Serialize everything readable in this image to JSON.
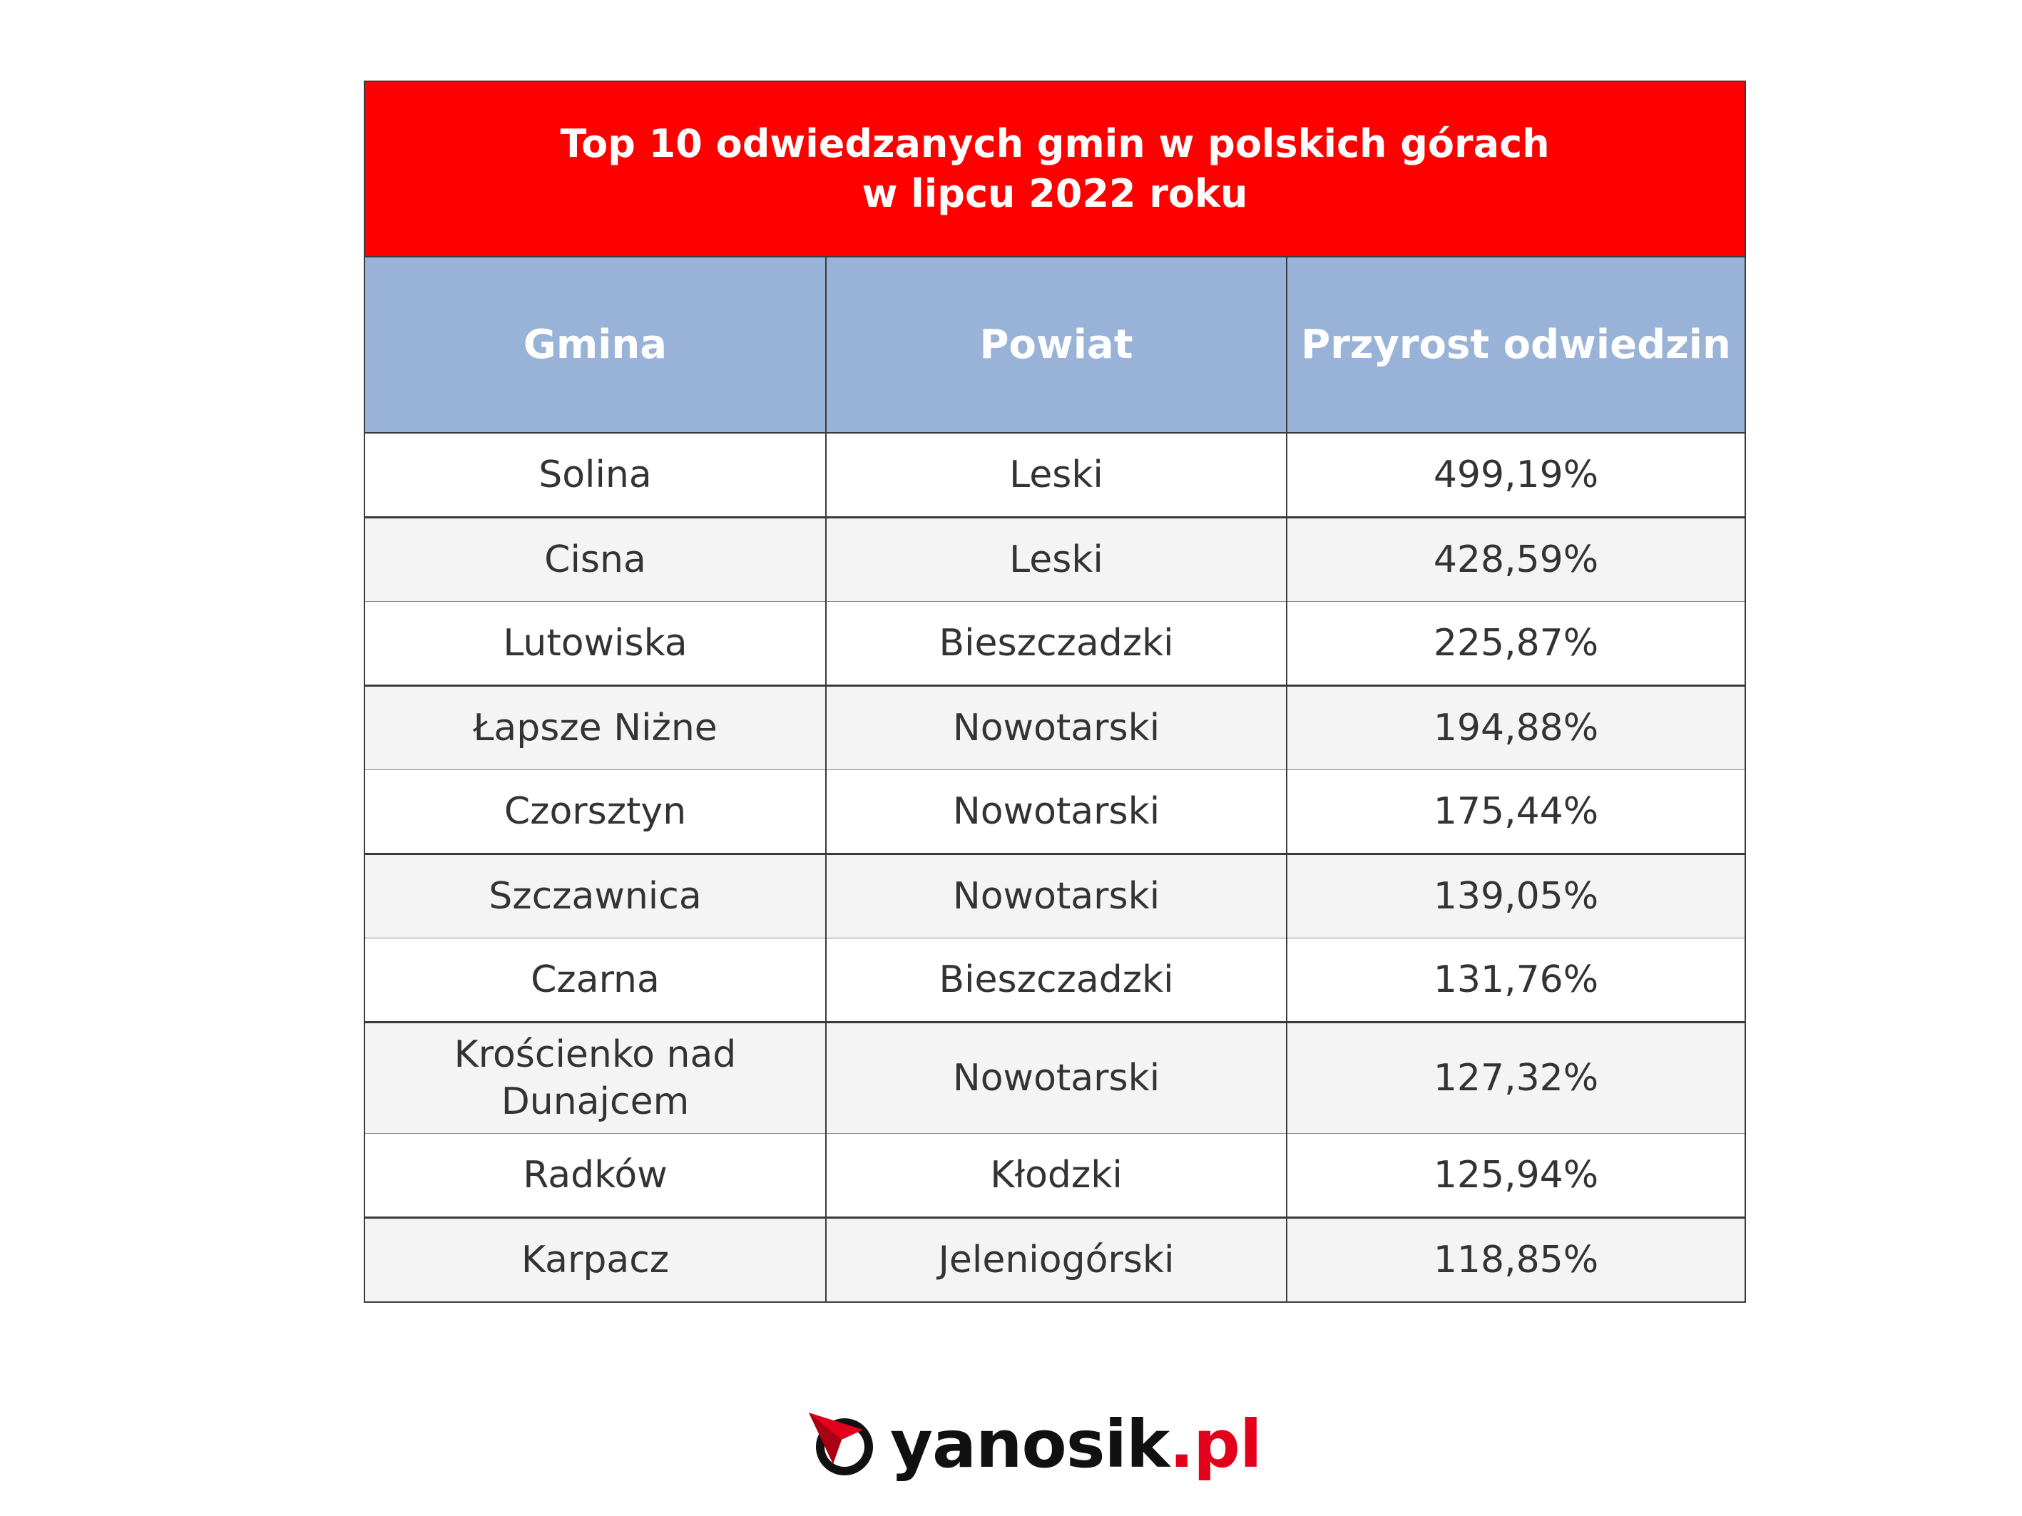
{
  "chart_data": {
    "type": "table",
    "title_line1": "Top 10 odwiedzanych gmin w polskich górach",
    "title_line2": "w lipcu 2022 roku",
    "columns": [
      "Gmina",
      "Powiat",
      "Przyrost odwiedzin"
    ],
    "rows": [
      [
        "Solina",
        "Leski",
        "499,19%"
      ],
      [
        "Cisna",
        "Leski",
        "428,59%"
      ],
      [
        "Lutowiska",
        "Bieszczadzki",
        "225,87%"
      ],
      [
        "Łapsze Niżne",
        "Nowotarski",
        "194,88%"
      ],
      [
        "Czorsztyn",
        "Nowotarski",
        "175,44%"
      ],
      [
        "Szczawnica",
        "Nowotarski",
        "139,05%"
      ],
      [
        "Czarna",
        "Bieszczadzki",
        "131,76%"
      ],
      [
        "Krościenko nad Dunajcem",
        "Nowotarski",
        "127,32%"
      ],
      [
        "Radków",
        "Kłodzki",
        "125,94%"
      ],
      [
        "Karpacz",
        "Jeleniogórski",
        "118,85%"
      ]
    ],
    "values": [
      499.19,
      428.59,
      225.87,
      194.88,
      175.44,
      139.05,
      131.76,
      127.32,
      125.94,
      118.85
    ],
    "unit": "%"
  },
  "colors": {
    "title_background": "#ff0000",
    "header_background": "#99b3d8",
    "row_alt_background": "#f4f4f4",
    "brand_red": "#e3001b"
  },
  "logo": {
    "name": "yanosik",
    "tld": ".pl",
    "icon": "yanosik-logo-icon"
  }
}
